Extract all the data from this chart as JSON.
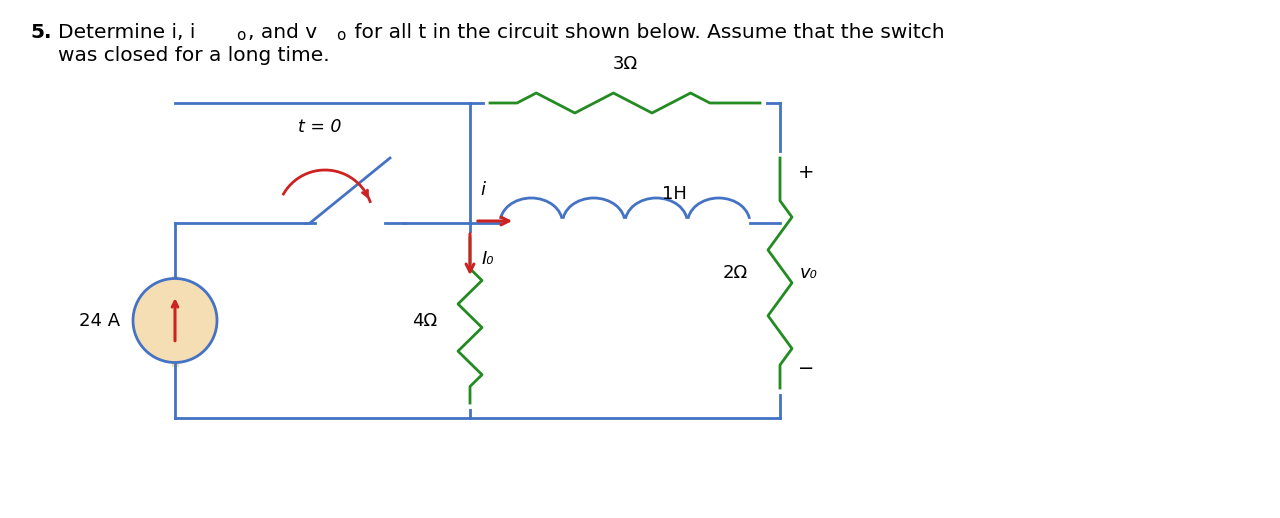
{
  "bg_color": "#ffffff",
  "wire_color": "#4472C4",
  "switch_color": "#8B1A1A",
  "arrow_color": "#CC2222",
  "resistor_color": "#228B22",
  "source_fill": "#F5DEB3",
  "circuit_lw": 2.0,
  "source_label": "24 A",
  "r4_label": "4Ω",
  "r3_label": "3Ω",
  "r2_label": "2Ω",
  "ind_label": "1H",
  "t0_label": "t = 0",
  "i_label": "i",
  "io_label": "I₀",
  "vo_label": "v₀",
  "plus_label": "+",
  "minus_label": "−"
}
